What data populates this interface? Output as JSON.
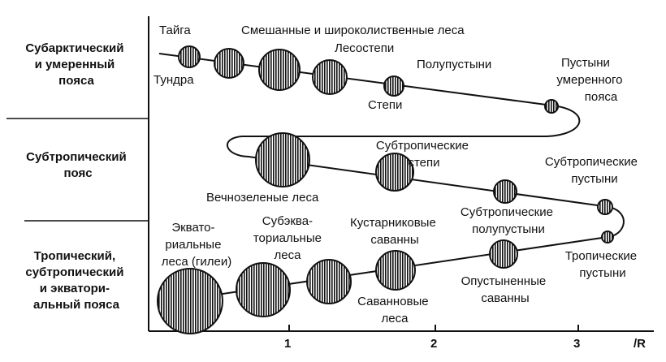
{
  "zones": {
    "subarctic": [
      "Субарктический",
      "и умеренный",
      "пояса"
    ],
    "subtropical": [
      "Субтропический",
      "пояс"
    ],
    "tropical": [
      "Тропический,",
      "субтропический",
      "и экватори-",
      "альный пояса"
    ]
  },
  "axis": {
    "ticks": [
      "1",
      "2",
      "3"
    ],
    "label": "/R"
  },
  "biomes": {
    "taiga": "Тайга",
    "tundra": "Тундра",
    "mixed_forests": "Смешанные и широколиственные леса",
    "forest_steppe": "Лесостепи",
    "steppe": "Степи",
    "semi_desert": "Полупустыни",
    "temperate_deserts": [
      "Пустыни",
      "умеренного",
      "пояса"
    ],
    "evergreen": "Вечнозеленые леса",
    "subtropical_steppe": [
      "Субтропические",
      "степи"
    ],
    "subtropical_semidesert": [
      "Субтропические",
      "полупустыни"
    ],
    "subtropical_deserts": [
      "Субтропические",
      "пустыни"
    ],
    "tropical_deserts": [
      "Тропические",
      "пустыни"
    ],
    "equatorial": [
      "Эквато-",
      "риальные",
      "леса (гилеи)"
    ],
    "subequatorial": [
      "Субэква-",
      "ториальные",
      "леса"
    ],
    "shrub_savanna": [
      "Кустарниковые",
      "саванны"
    ],
    "savanna_forest": [
      "Саванновые",
      "леса"
    ],
    "desertified_savanna": [
      "Опустыненные",
      "саванны"
    ]
  }
}
